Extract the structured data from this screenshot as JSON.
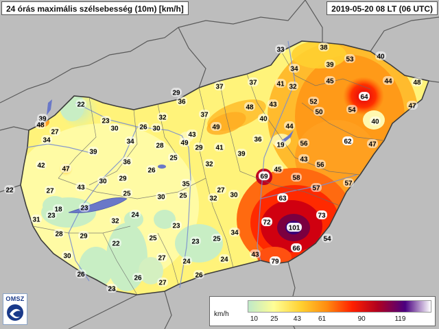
{
  "header": {
    "title": "24 órás maximális szélsebesség (10m) [km/h]",
    "valid_time": "2019-05-20 08 LT (06 UTC)"
  },
  "logo": {
    "text": "OMSZ"
  },
  "legend": {
    "unit": "km/h",
    "ticks": [
      "10",
      "25",
      "43",
      "61",
      "90",
      "119"
    ],
    "colors": [
      "#bfe9c8",
      "#fffe96",
      "#ffd030",
      "#ff8c10",
      "#ff2000",
      "#b00020",
      "#4a0080",
      "#ffffff"
    ]
  },
  "stations": [
    {
      "name": "s01",
      "value": "33"
    },
    {
      "name": "s02",
      "value": "38"
    },
    {
      "name": "s03",
      "value": "53"
    },
    {
      "name": "s04",
      "value": "40"
    },
    {
      "name": "s05",
      "value": "34"
    },
    {
      "name": "s06",
      "value": "39"
    },
    {
      "name": "s07",
      "value": "44"
    },
    {
      "name": "s08",
      "value": "48"
    },
    {
      "name": "s09",
      "value": "37"
    },
    {
      "name": "s10",
      "value": "37"
    },
    {
      "name": "s11",
      "value": "41"
    },
    {
      "name": "s12",
      "value": "32"
    },
    {
      "name": "s13",
      "value": "45"
    },
    {
      "name": "s14",
      "value": "64"
    },
    {
      "name": "s15",
      "value": "29"
    },
    {
      "name": "s16",
      "value": "36"
    },
    {
      "name": "s17",
      "value": "22"
    },
    {
      "name": "s18",
      "value": "52"
    },
    {
      "name": "s19",
      "value": "47"
    },
    {
      "name": "s20",
      "value": "48"
    },
    {
      "name": "s21",
      "value": "43"
    },
    {
      "name": "s22",
      "value": "54"
    },
    {
      "name": "s23",
      "value": "37"
    },
    {
      "name": "s24",
      "value": "32"
    },
    {
      "name": "s25",
      "value": "39"
    },
    {
      "name": "s26",
      "value": "48"
    },
    {
      "name": "s27",
      "value": "23"
    },
    {
      "name": "s28",
      "value": "30"
    },
    {
      "name": "s29",
      "value": "26"
    },
    {
      "name": "s30",
      "value": "30"
    },
    {
      "name": "s31",
      "value": "49"
    },
    {
      "name": "s32",
      "value": "40"
    },
    {
      "name": "s33",
      "value": "44"
    },
    {
      "name": "s34",
      "value": "40"
    },
    {
      "name": "s35",
      "value": "27"
    },
    {
      "name": "s36",
      "value": "43"
    },
    {
      "name": "s37",
      "value": "50"
    },
    {
      "name": "s38",
      "value": "34"
    },
    {
      "name": "s39",
      "value": "34"
    },
    {
      "name": "s40",
      "value": "49"
    },
    {
      "name": "s41",
      "value": "29"
    },
    {
      "name": "s42",
      "value": "28"
    },
    {
      "name": "s43",
      "value": "41"
    },
    {
      "name": "s44",
      "value": "36"
    },
    {
      "name": "s45",
      "value": "19"
    },
    {
      "name": "s46",
      "value": "56"
    },
    {
      "name": "s47",
      "value": "62"
    },
    {
      "name": "s48",
      "value": "47"
    },
    {
      "name": "s49",
      "value": "39"
    },
    {
      "name": "s50",
      "value": "42"
    },
    {
      "name": "s51",
      "value": "47"
    },
    {
      "name": "s52",
      "value": "36"
    },
    {
      "name": "s53",
      "value": "26"
    },
    {
      "name": "s54",
      "value": "25"
    },
    {
      "name": "s55",
      "value": "32"
    },
    {
      "name": "s56",
      "value": "39"
    },
    {
      "name": "s57",
      "value": "45"
    },
    {
      "name": "s58",
      "value": "43"
    },
    {
      "name": "s59",
      "value": "56"
    },
    {
      "name": "s60",
      "value": "69"
    },
    {
      "name": "s61",
      "value": "58"
    },
    {
      "name": "s62",
      "value": "27"
    },
    {
      "name": "s63",
      "value": "43"
    },
    {
      "name": "s64",
      "value": "30"
    },
    {
      "name": "s65",
      "value": "29"
    },
    {
      "name": "s66",
      "value": "35"
    },
    {
      "name": "s67",
      "value": "27"
    },
    {
      "name": "s68",
      "value": "57"
    },
    {
      "name": "s69",
      "value": "57"
    },
    {
      "name": "s70",
      "value": "22"
    },
    {
      "name": "s71",
      "value": "25"
    },
    {
      "name": "s72",
      "value": "30"
    },
    {
      "name": "s73",
      "value": "25"
    },
    {
      "name": "s74",
      "value": "32"
    },
    {
      "name": "s75",
      "value": "30"
    },
    {
      "name": "s76",
      "value": "63"
    },
    {
      "name": "s77",
      "value": "18"
    },
    {
      "name": "s78",
      "value": "23"
    },
    {
      "name": "s79",
      "value": "31"
    },
    {
      "name": "s80",
      "value": "23"
    },
    {
      "name": "s81",
      "value": "32"
    },
    {
      "name": "s82",
      "value": "24"
    },
    {
      "name": "s83",
      "value": "72"
    },
    {
      "name": "s84",
      "value": "73"
    },
    {
      "name": "s85",
      "value": "23"
    },
    {
      "name": "s86",
      "value": "101"
    },
    {
      "name": "s87",
      "value": "28"
    },
    {
      "name": "s88",
      "value": "29"
    },
    {
      "name": "s89",
      "value": "25"
    },
    {
      "name": "s90",
      "value": "23"
    },
    {
      "name": "s91",
      "value": "25"
    },
    {
      "name": "s92",
      "value": "34"
    },
    {
      "name": "s93",
      "value": "54"
    },
    {
      "name": "s94",
      "value": "22"
    },
    {
      "name": "s95",
      "value": "66"
    },
    {
      "name": "s96",
      "value": "30"
    },
    {
      "name": "s97",
      "value": "27"
    },
    {
      "name": "s98",
      "value": "24"
    },
    {
      "name": "s99",
      "value": "24"
    },
    {
      "name": "s100",
      "value": "43"
    },
    {
      "name": "s101",
      "value": "79"
    },
    {
      "name": "s102",
      "value": "26"
    },
    {
      "name": "s103",
      "value": "26"
    },
    {
      "name": "s104",
      "value": "26"
    },
    {
      "name": "s105",
      "value": "23"
    },
    {
      "name": "s106",
      "value": "27"
    }
  ]
}
